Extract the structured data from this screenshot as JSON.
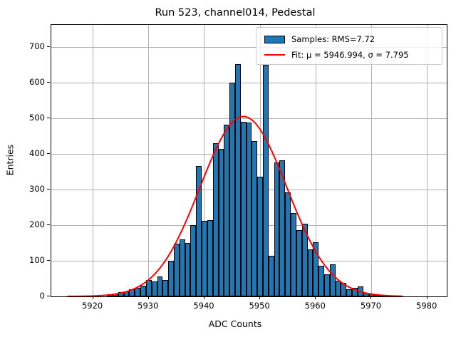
{
  "window": {
    "kind": "matplotlib-style plot figure",
    "background": "#ffffff"
  },
  "title": "Run 523, channel014, Pedestal",
  "xlabel": "ADC Counts",
  "ylabel": "Entries",
  "legend": {
    "position": "upper right",
    "items": [
      {
        "label": "Samples: RMS=7.72",
        "swatch": "filled-rect",
        "color": "#1f77b4"
      },
      {
        "label": "Fit: μ = 5946.994, σ = 7.795",
        "swatch": "line",
        "color": "#ff0000"
      }
    ]
  },
  "chart_data": {
    "type": "bar",
    "subtype": "histogram-with-gaussian-fit",
    "title": "Run 523, channel014, Pedestal",
    "xlabel": "ADC Counts",
    "ylabel": "Entries",
    "bin_width": 1,
    "bin_centers": [
      5923,
      5924,
      5925,
      5926,
      5927,
      5928,
      5929,
      5930,
      5931,
      5932,
      5933,
      5934,
      5935,
      5936,
      5937,
      5938,
      5939,
      5940,
      5941,
      5942,
      5943,
      5944,
      5945,
      5946,
      5947,
      5948,
      5949,
      5950,
      5951,
      5952,
      5953,
      5954,
      5955,
      5956,
      5957,
      5958,
      5959,
      5960,
      5961,
      5962,
      5963,
      5964,
      5965,
      5966,
      5967,
      5968,
      5969,
      5970,
      5971,
      5972,
      5973,
      5974,
      5975
    ],
    "values": [
      6,
      8,
      12,
      15,
      20,
      24,
      31,
      47,
      43,
      57,
      47,
      100,
      148,
      160,
      150,
      200,
      366,
      213,
      215,
      430,
      415,
      483,
      600,
      653,
      491,
      489,
      436,
      337,
      650,
      115,
      376,
      383,
      292,
      235,
      187,
      205,
      133,
      152,
      87,
      63,
      90,
      45,
      38,
      20,
      25,
      28,
      11,
      7,
      5,
      4,
      2,
      3,
      2
    ],
    "fit": {
      "type": "gaussian",
      "mu": 5946.994,
      "sigma": 7.795,
      "amplitude": 505,
      "x_range": [
        5915.5,
        5975.5
      ],
      "color": "#ff0000",
      "linewidth": 2
    },
    "x_ticks": [
      5920,
      5930,
      5940,
      5950,
      5960,
      5970,
      5980
    ],
    "y_ticks": [
      0,
      100,
      200,
      300,
      400,
      500,
      600,
      700
    ],
    "xlim": [
      5912.5,
      5983.5
    ],
    "ylim": [
      0,
      762
    ],
    "grid": true,
    "grid_color": "#b0b0b0",
    "bar_color": "#1f77b4",
    "bar_edge_color": "#000000",
    "legend_position": "upper right"
  }
}
